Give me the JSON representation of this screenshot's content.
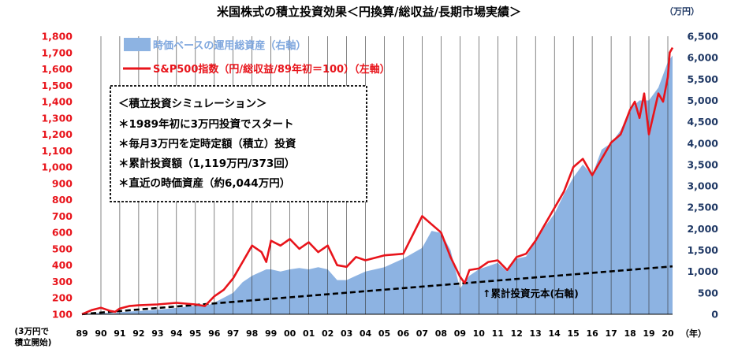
{
  "chart_data": {
    "type": "area+line",
    "title": "米国株式の積立投資効果＜円換算/総収益/長期市場実績＞",
    "right_unit": "（万円）",
    "x_start_note": "(3万円で 積立開始)",
    "x_start_note_lines": [
      "(3万円で",
      "積立開始)"
    ],
    "x_unit": "（年）",
    "x_ticks": [
      "89",
      "90",
      "91",
      "92",
      "93",
      "94",
      "95",
      "96",
      "97",
      "98",
      "99",
      "00",
      "01",
      "02",
      "03",
      "04",
      "05",
      "06",
      "07",
      "08",
      "09",
      "10",
      "11",
      "12",
      "13",
      "14",
      "15",
      "16",
      "17",
      "18",
      "19",
      "20"
    ],
    "x_range": [
      1989,
      2020.25
    ],
    "y_left": {
      "min": 100,
      "max": 1800,
      "step": 100
    },
    "y_left_ticks": [
      "100",
      "200",
      "300",
      "400",
      "500",
      "600",
      "700",
      "800",
      "900",
      "1,000",
      "1,100",
      "1,200",
      "1,300",
      "1,400",
      "1,500",
      "1,600",
      "1,700",
      "1,800"
    ],
    "y_right": {
      "min": 0,
      "max": 6500,
      "step": 500
    },
    "y_right_ticks": [
      "0",
      "500",
      "1,000",
      "1,500",
      "2,000",
      "2,500",
      "3,000",
      "3,500",
      "4,000",
      "4,500",
      "5,000",
      "5,500",
      "6,000",
      "6,500"
    ],
    "legend": [
      {
        "name": "時価ベースの運用総資産（右軸）",
        "color": "#8db3e2",
        "kind": "area"
      },
      {
        "name": "S&P500指数（円/総収益/89年初＝100）（左軸）",
        "color": "#e8141b",
        "kind": "line"
      }
    ],
    "series": [
      {
        "name": "時価ベースの運用総資産（右軸）",
        "axis": "right",
        "x": [
          1989.0,
          1990.0,
          1990.75,
          1991.0,
          1992.0,
          1993.0,
          1994.0,
          1995.0,
          1995.5,
          1996.0,
          1997.0,
          1997.5,
          1998.0,
          1998.75,
          1999.0,
          1999.5,
          2000.0,
          2000.5,
          2001.0,
          2001.5,
          2002.0,
          2002.5,
          2003.0,
          2003.5,
          2004.0,
          2005.0,
          2006.0,
          2007.0,
          2007.5,
          2008.0,
          2008.5,
          2009.0,
          2009.5,
          2010.0,
          2011.0,
          2011.5,
          2012.0,
          2012.5,
          2013.0,
          2013.5,
          2014.0,
          2014.5,
          2015.0,
          2015.5,
          2016.0,
          2016.5,
          2017.0,
          2017.5,
          2018.0,
          2018.5,
          2019.0,
          2019.5,
          2020.0,
          2020.25
        ],
        "y": [
          5,
          35,
          25,
          50,
          75,
          105,
          150,
          200,
          180,
          270,
          500,
          750,
          900,
          1050,
          1050,
          1000,
          1050,
          1080,
          1050,
          1100,
          1050,
          800,
          800,
          900,
          1000,
          1100,
          1300,
          1550,
          1950,
          1900,
          1500,
          600,
          900,
          1050,
          1200,
          1000,
          1300,
          1350,
          1700,
          2050,
          2350,
          2800,
          3200,
          3500,
          3250,
          3850,
          4000,
          4300,
          4800,
          5000,
          5000,
          5300,
          5900,
          6050
        ]
      },
      {
        "name": "S&P500指数（円/総収益/89年初＝100）（左軸）",
        "axis": "left",
        "x": [
          1989.0,
          1989.5,
          1990.0,
          1990.5,
          1990.75,
          1991.0,
          1991.5,
          1992.0,
          1993.0,
          1994.0,
          1995.0,
          1995.5,
          1996.0,
          1996.5,
          1997.0,
          1997.5,
          1998.0,
          1998.5,
          1998.75,
          1999.0,
          1999.5,
          2000.0,
          2000.5,
          2001.0,
          2001.5,
          2002.0,
          2002.5,
          2003.0,
          2003.5,
          2004.0,
          2005.0,
          2006.0,
          2007.0,
          2007.5,
          2008.0,
          2008.5,
          2009.0,
          2009.25,
          2009.5,
          2010.0,
          2010.5,
          2011.0,
          2011.5,
          2012.0,
          2012.5,
          2013.0,
          2013.5,
          2014.0,
          2014.5,
          2015.0,
          2015.5,
          2016.0,
          2016.5,
          2017.0,
          2017.5,
          2018.0,
          2018.25,
          2018.5,
          2018.75,
          2019.0,
          2019.5,
          2019.75,
          2020.0,
          2020.1,
          2020.25
        ],
        "y": [
          100,
          125,
          140,
          120,
          115,
          135,
          150,
          155,
          160,
          170,
          160,
          150,
          210,
          250,
          320,
          420,
          520,
          480,
          420,
          550,
          520,
          560,
          500,
          540,
          480,
          520,
          400,
          390,
          450,
          430,
          460,
          470,
          700,
          650,
          600,
          450,
          330,
          290,
          370,
          380,
          420,
          430,
          370,
          450,
          470,
          550,
          650,
          750,
          850,
          1000,
          1050,
          950,
          1050,
          1150,
          1200,
          1350,
          1400,
          1300,
          1450,
          1200,
          1450,
          1400,
          1550,
          1700,
          1730
        ]
      },
      {
        "name": "累計投資元本(右軸)",
        "axis": "right",
        "x": [
          1989.0,
          2020.25
        ],
        "y": [
          3,
          1119
        ]
      }
    ],
    "annotations": {
      "box_lines": [
        "＜積立投資シミュレーション＞",
        "＊1989年初に3万円投資でスタート",
        "＊毎月3万円を定時定額（積立）投資",
        "＊累計投資額（1,119万円/373回）",
        "＊直近の時価資産（約6,044万円）"
      ],
      "principal_label": "↑累計投資元本(右軸)"
    },
    "colors": {
      "area": "#8db3e2",
      "line": "#e8141b",
      "principal": "#000000",
      "grid": "#333333",
      "left_axis_text": "#e8141b",
      "right_axis_text": "#1f3864"
    }
  }
}
